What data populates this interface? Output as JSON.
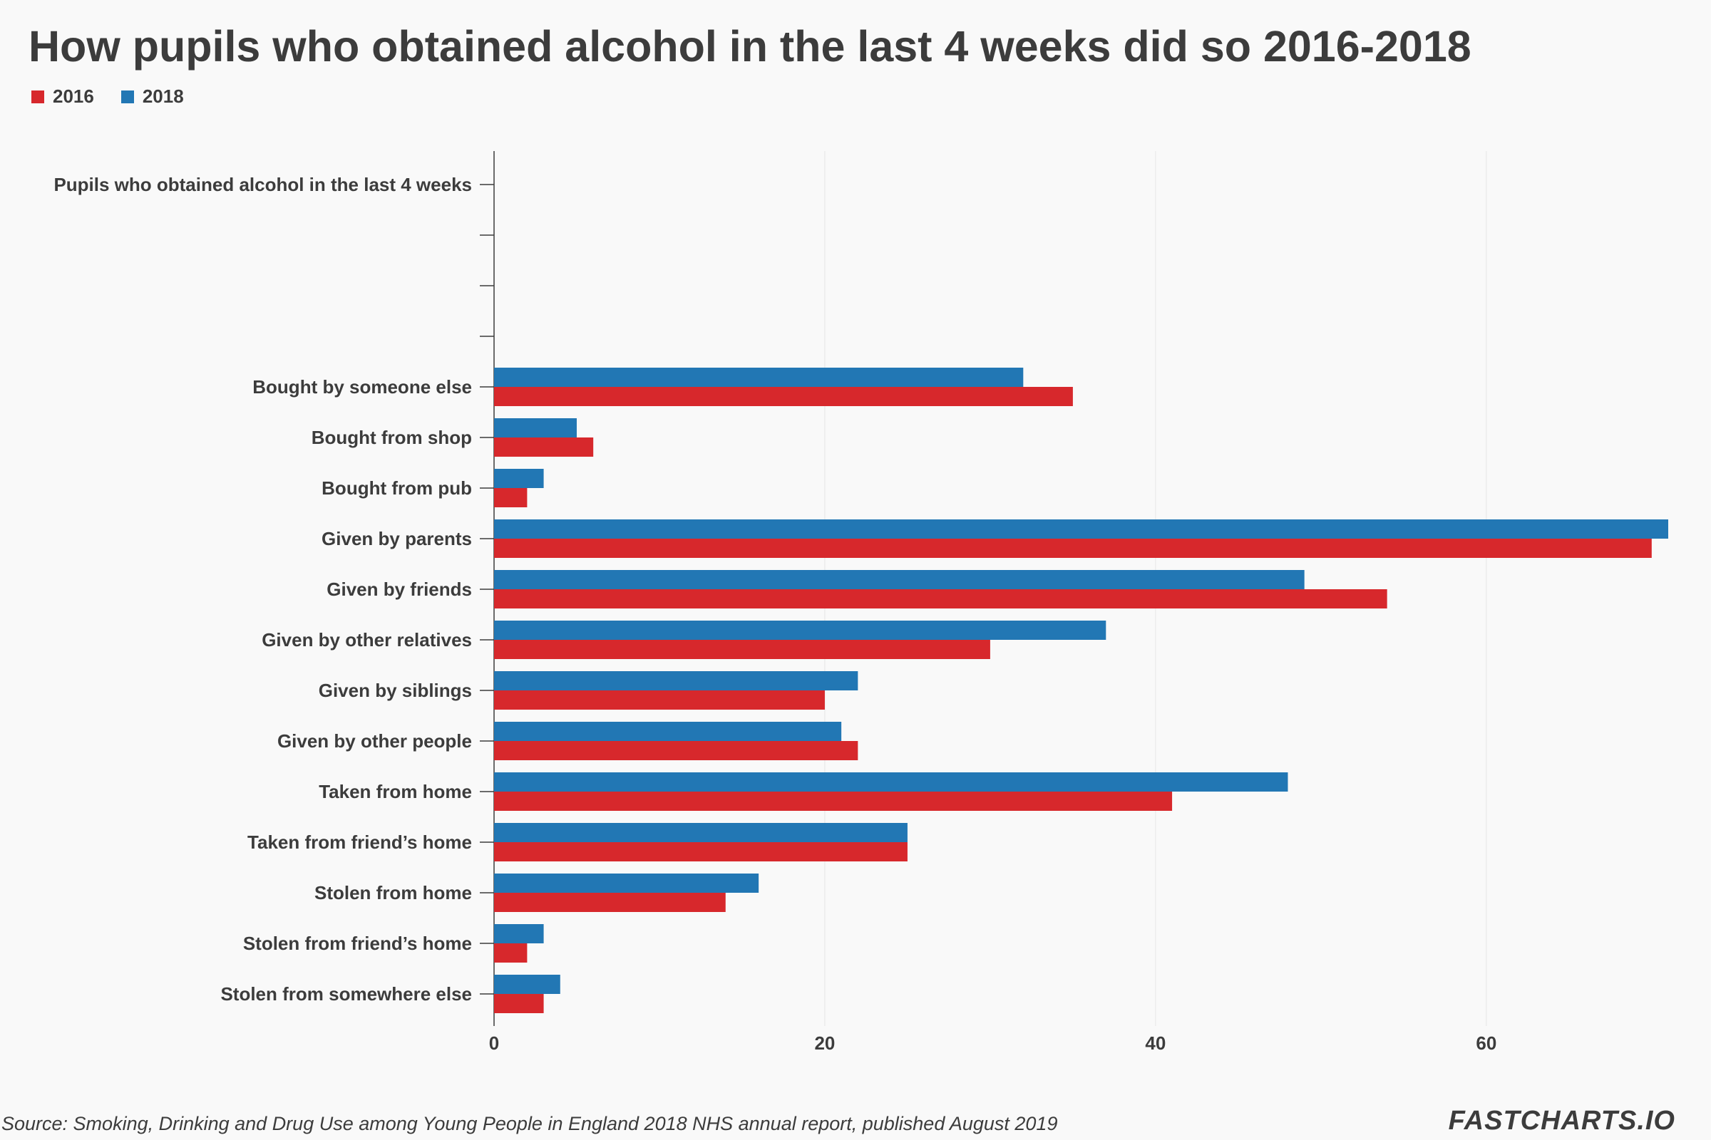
{
  "chart_data": {
    "type": "bar",
    "orientation": "horizontal",
    "title": "How pupils who obtained alcohol in the last 4 weeks did so 2016-2018",
    "categories": [
      "Pupils who obtained alcohol in the last 4 weeks",
      "",
      "",
      "",
      "Bought by someone else",
      "Bought from shop",
      "Bought from pub",
      "Given by parents",
      "Given by friends",
      "Given by other relatives",
      "Given by siblings",
      "Given by other people",
      "Taken from home",
      "Taken from friend’s home",
      "Stolen from home",
      "Stolen from friend’s home",
      "Stolen from somewhere else"
    ],
    "series": [
      {
        "name": "2018",
        "color": "#2277b4",
        "values": [
          null,
          null,
          null,
          null,
          32,
          5,
          3,
          71,
          49,
          37,
          22,
          21,
          48,
          25,
          16,
          3,
          4
        ]
      },
      {
        "name": "2016",
        "color": "#d7282c",
        "values": [
          null,
          null,
          null,
          null,
          35,
          6,
          2,
          70,
          54,
          30,
          20,
          22,
          41,
          25,
          14,
          2,
          3
        ]
      }
    ],
    "xlim": [
      0,
      71
    ],
    "xticks": [
      0,
      20,
      40,
      60
    ],
    "xlabel": "",
    "ylabel": "",
    "grid": true,
    "legend": "top-left"
  },
  "legend": {
    "items": [
      {
        "label": "2016",
        "color": "#d7282c"
      },
      {
        "label": "2018",
        "color": "#2277b4"
      }
    ]
  },
  "source": "Source: Smoking, Drinking and Drug Use among Young People in England 2018 NHS annual report, published August 2019",
  "brand": "FASTCHARTS.IO"
}
